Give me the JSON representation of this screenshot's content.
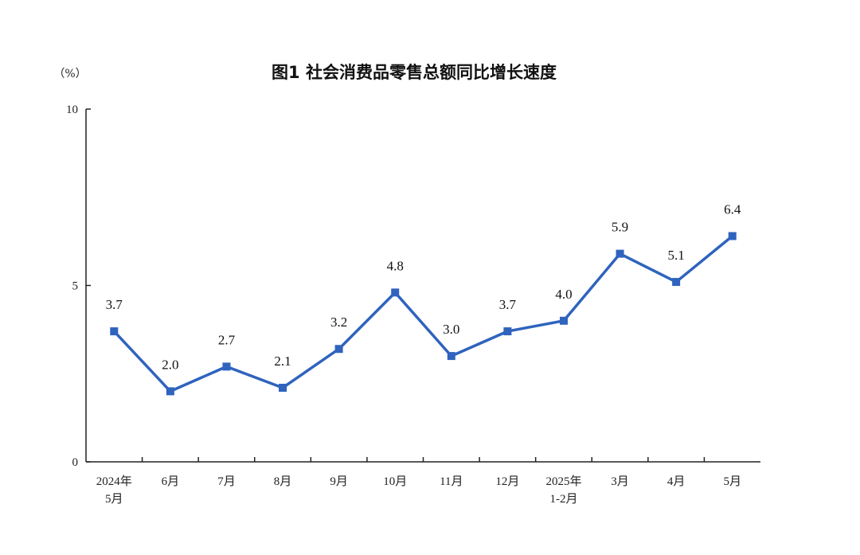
{
  "chart_data": {
    "type": "line",
    "title": "图1  社会消费品零售总额同比增长速度",
    "unit_label": "（%）",
    "categories": [
      [
        "2024年",
        "5月"
      ],
      [
        "6月"
      ],
      [
        "7月"
      ],
      [
        "8月"
      ],
      [
        "9月"
      ],
      [
        "10月"
      ],
      [
        "11月"
      ],
      [
        "12月"
      ],
      [
        "2025年",
        "1-2月"
      ],
      [
        "3月"
      ],
      [
        "4月"
      ],
      [
        "5月"
      ]
    ],
    "values": [
      3.7,
      2.0,
      2.7,
      2.1,
      3.2,
      4.8,
      3.0,
      3.7,
      4.0,
      5.9,
      5.1,
      6.4
    ],
    "data_labels": [
      "3.7",
      "2.0",
      "2.7",
      "2.1",
      "3.2",
      "4.8",
      "3.0",
      "3.7",
      "4.0",
      "5.9",
      "5.1",
      "6.4"
    ],
    "yticks": [
      "0",
      "5",
      "10"
    ],
    "ylim": [
      0,
      10
    ],
    "grid": false,
    "legend": "none",
    "line_color": "#2f63be",
    "marker": "square"
  }
}
